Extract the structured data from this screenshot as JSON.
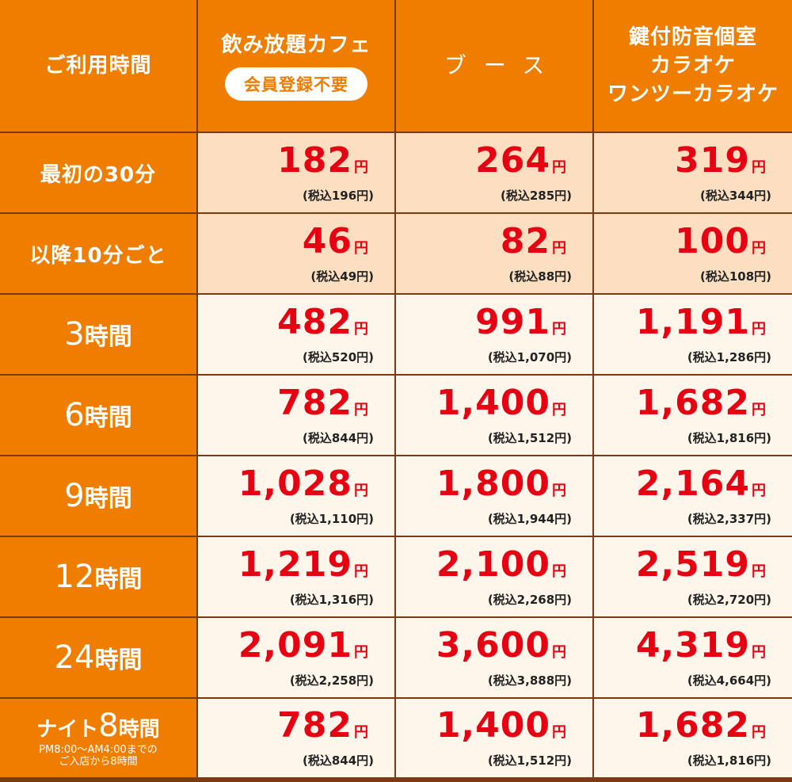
{
  "header": {
    "col1": "ご利用時間",
    "col2": "飲み放題カフェ",
    "col2_badge": "会員登録不要",
    "col3": "ブース",
    "col4_line1": "鍵付防音個室",
    "col4_line2": "カラオケ",
    "col4_line3": "ワンツーカラオケ"
  },
  "yen": "円",
  "rows": [
    {
      "label": "最初の30分",
      "prices": [
        {
          "main": "182",
          "tax": "(税込196円)"
        },
        {
          "main": "264",
          "tax": "(税込285円)"
        },
        {
          "main": "319",
          "tax": "(税込344円)"
        }
      ]
    },
    {
      "label": "以降10分ごと",
      "prices": [
        {
          "main": "46",
          "tax": "(税込49円)"
        },
        {
          "main": "82",
          "tax": "(税込88円)"
        },
        {
          "main": "100",
          "tax": "(税込108円)"
        }
      ]
    },
    {
      "label_num": "3",
      "label_unit": "時間",
      "prices": [
        {
          "main": "482",
          "tax": "(税込520円)"
        },
        {
          "main": "991",
          "tax": "(税込1,070円)"
        },
        {
          "main": "1,191",
          "tax": "(税込1,286円)"
        }
      ]
    },
    {
      "label_num": "6",
      "label_unit": "時間",
      "prices": [
        {
          "main": "782",
          "tax": "(税込844円)"
        },
        {
          "main": "1,400",
          "tax": "(税込1,512円)"
        },
        {
          "main": "1,682",
          "tax": "(税込1,816円)"
        }
      ]
    },
    {
      "label_num": "9",
      "label_unit": "時間",
      "prices": [
        {
          "main": "1,028",
          "tax": "(税込1,110円)"
        },
        {
          "main": "1,800",
          "tax": "(税込1,944円)"
        },
        {
          "main": "2,164",
          "tax": "(税込2,337円)"
        }
      ]
    },
    {
      "label_num": "12",
      "label_unit": "時間",
      "prices": [
        {
          "main": "1,219",
          "tax": "(税込1,316円)"
        },
        {
          "main": "2,100",
          "tax": "(税込2,268円)"
        },
        {
          "main": "2,519",
          "tax": "(税込2,720円)"
        }
      ]
    },
    {
      "label_num": "24",
      "label_unit": "時間",
      "prices": [
        {
          "main": "2,091",
          "tax": "(税込2,258円)"
        },
        {
          "main": "3,600",
          "tax": "(税込3,888円)"
        },
        {
          "main": "4,319",
          "tax": "(税込4,664円)"
        }
      ]
    },
    {
      "label_pre": "ナイト",
      "label_num": "8",
      "label_unit": "時間",
      "note1": "PM8:00～AM4:00までの",
      "note2": "ご入店から8時間",
      "prices": [
        {
          "main": "782",
          "tax": "(税込844円)"
        },
        {
          "main": "1,400",
          "tax": "(税込1,512円)"
        },
        {
          "main": "1,682",
          "tax": "(税込1,816円)"
        }
      ]
    }
  ],
  "colors": {
    "orange": "#ee7d00",
    "peach": "#fbdfc0",
    "cream": "#fef6ea",
    "red": "#e60012",
    "border": "#7a3b12"
  }
}
